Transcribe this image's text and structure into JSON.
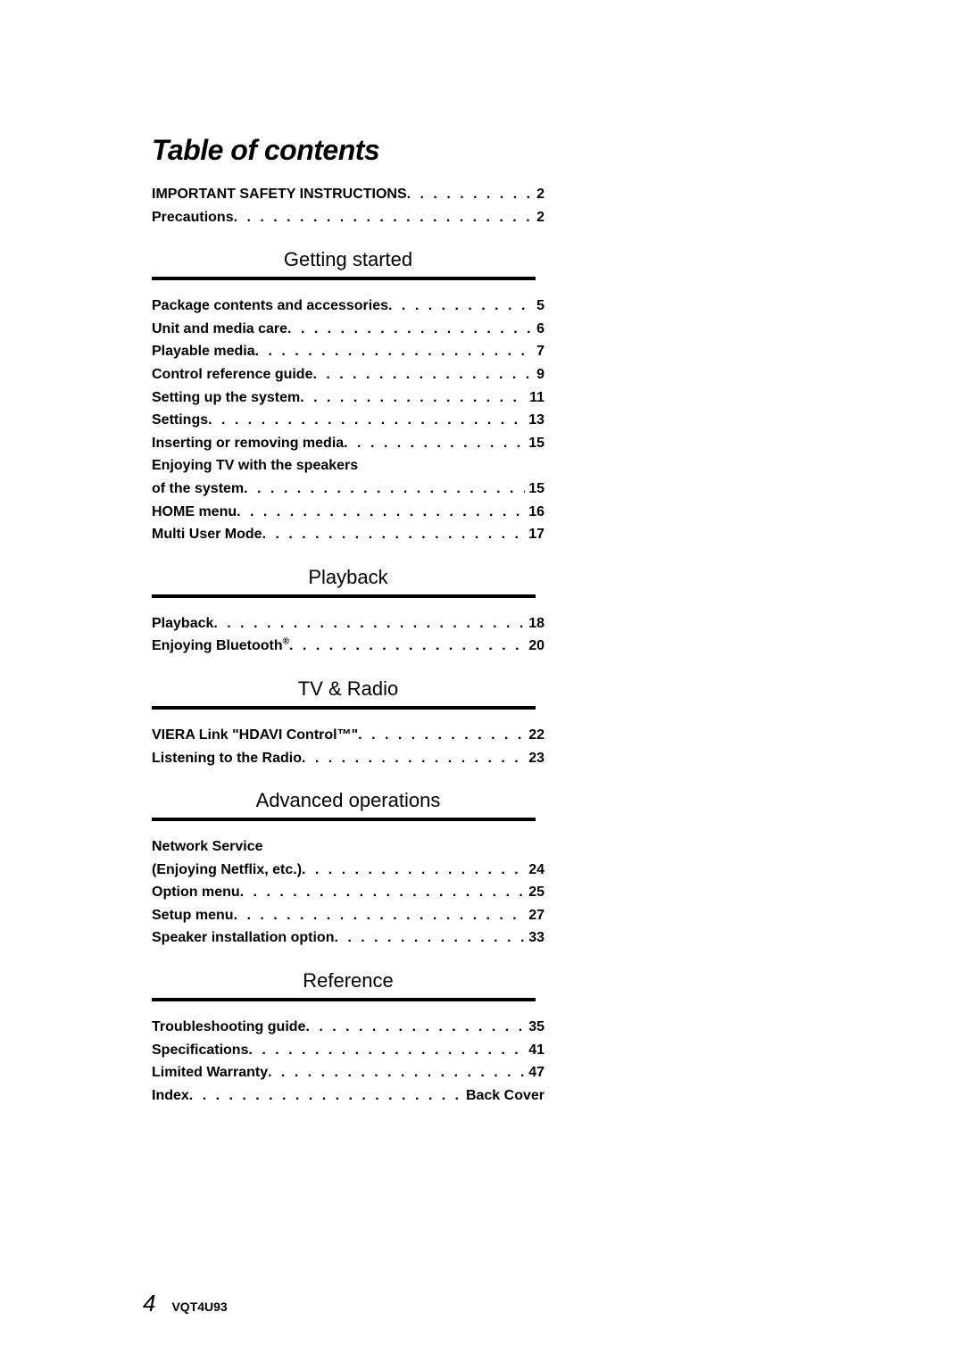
{
  "title": "Table of contents",
  "intro": [
    {
      "label": "IMPORTANT SAFETY INSTRUCTIONS",
      "page": "2"
    },
    {
      "label": "Precautions",
      "page": "2"
    }
  ],
  "sections": [
    {
      "heading": "Getting started",
      "items": [
        {
          "label": "Package contents and accessories",
          "page": "5"
        },
        {
          "label": "Unit and media care",
          "page": "6"
        },
        {
          "label": "Playable media",
          "page": "7"
        },
        {
          "label": "Control reference guide",
          "page": "9"
        },
        {
          "label": "Setting up the system",
          "page": "11"
        },
        {
          "label": "Settings",
          "page": "13"
        },
        {
          "label": "Inserting or removing media",
          "page": "15"
        },
        {
          "label": "Enjoying TV with the speakers",
          "page": ""
        },
        {
          "label": "of the system",
          "page": "15"
        },
        {
          "label": "HOME menu",
          "page": "16"
        },
        {
          "label": "Multi User Mode",
          "page": "17"
        }
      ]
    },
    {
      "heading": "Playback",
      "items": [
        {
          "label": "Playback",
          "page": "18"
        },
        {
          "label": "Enjoying Bluetooth",
          "suffix": "®",
          "page": "20"
        }
      ]
    },
    {
      "heading": "TV & Radio",
      "items": [
        {
          "label": "VIERA Link \"HDAVI Control™\"",
          "page": "22"
        },
        {
          "label": "Listening to the Radio",
          "page": "23"
        }
      ]
    },
    {
      "heading": "Advanced operations",
      "items": [
        {
          "label": "Network Service",
          "page": ""
        },
        {
          "label": "(Enjoying Netflix, etc.)",
          "page": "24"
        },
        {
          "label": "Option menu",
          "page": "25"
        },
        {
          "label": "Setup menu",
          "page": "27"
        },
        {
          "label": "Speaker installation option",
          "page": "33"
        }
      ]
    },
    {
      "heading": "Reference",
      "items": [
        {
          "label": "Troubleshooting guide",
          "page": "35"
        },
        {
          "label": "Specifications",
          "page": "41"
        },
        {
          "label": "Limited Warranty",
          "page": "47"
        },
        {
          "label": "Index",
          "page": "Back Cover"
        }
      ]
    }
  ],
  "footer": {
    "pageNumber": "4",
    "label": "VQT4U93"
  },
  "styles": {
    "title_fontsize": 32,
    "section_fontsize": 22,
    "line_fontsize": 16,
    "rule_color": "#000000",
    "background": "#ffffff"
  }
}
